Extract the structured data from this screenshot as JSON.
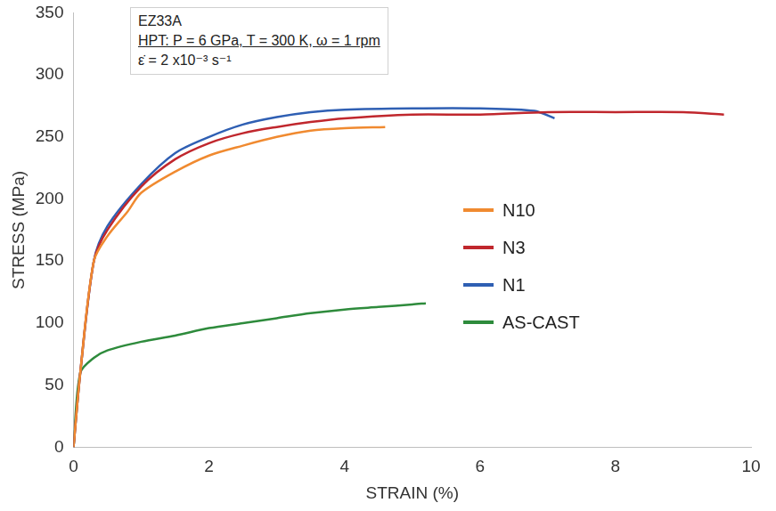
{
  "chart_data": {
    "type": "line",
    "x_label": "STRAIN (%)",
    "y_label": "STRESS (MPa)",
    "annotation": [
      "EZ33A",
      "HPT: P = 6 GPa, T = 300 K, ω = 1 rpm",
      "ε̇ = 2 x10⁻³ s⁻¹"
    ],
    "xlim": [
      0,
      10
    ],
    "xticks": [
      0,
      2,
      4,
      6,
      8,
      10
    ],
    "ylim": [
      0,
      350
    ],
    "yticks": [
      0,
      50,
      100,
      150,
      200,
      250,
      300,
      350
    ],
    "grid": false,
    "legend": "right",
    "series": [
      {
        "name": "N10",
        "color": "#f08a30",
        "x": [
          0,
          0.1,
          0.3,
          0.5,
          0.8,
          1,
          1.5,
          2,
          2.5,
          3,
          3.5,
          4,
          4.6
        ],
        "values": [
          0,
          60,
          150,
          170,
          190,
          205,
          222,
          235,
          243,
          250,
          255,
          257,
          258
        ]
      },
      {
        "name": "N3",
        "color": "#c0272d",
        "x": [
          0,
          0.1,
          0.3,
          0.5,
          1,
          1.5,
          2,
          2.5,
          3,
          3.5,
          4,
          5,
          6,
          7,
          8,
          9,
          9.6
        ],
        "values": [
          0,
          60,
          150,
          175,
          210,
          232,
          245,
          253,
          258,
          262,
          265,
          268,
          268,
          270,
          270,
          270,
          268
        ]
      },
      {
        "name": "N1",
        "color": "#2f5fb3",
        "x": [
          0,
          0.1,
          0.3,
          0.5,
          1,
          1.5,
          2,
          2.5,
          3,
          3.5,
          4,
          5,
          6,
          6.8,
          7.1
        ],
        "values": [
          0,
          60,
          150,
          178,
          212,
          237,
          250,
          260,
          266,
          270,
          272,
          273,
          273,
          271,
          265
        ]
      },
      {
        "name": "AS-CAST",
        "color": "#2e8b3c",
        "x": [
          0,
          0.1,
          0.3,
          0.5,
          1,
          1.5,
          2,
          2.5,
          3,
          3.5,
          4,
          4.5,
          5,
          5.2
        ],
        "values": [
          0,
          60,
          72,
          78,
          85,
          90,
          96,
          100,
          104,
          108,
          111,
          113,
          115,
          116
        ]
      }
    ]
  }
}
